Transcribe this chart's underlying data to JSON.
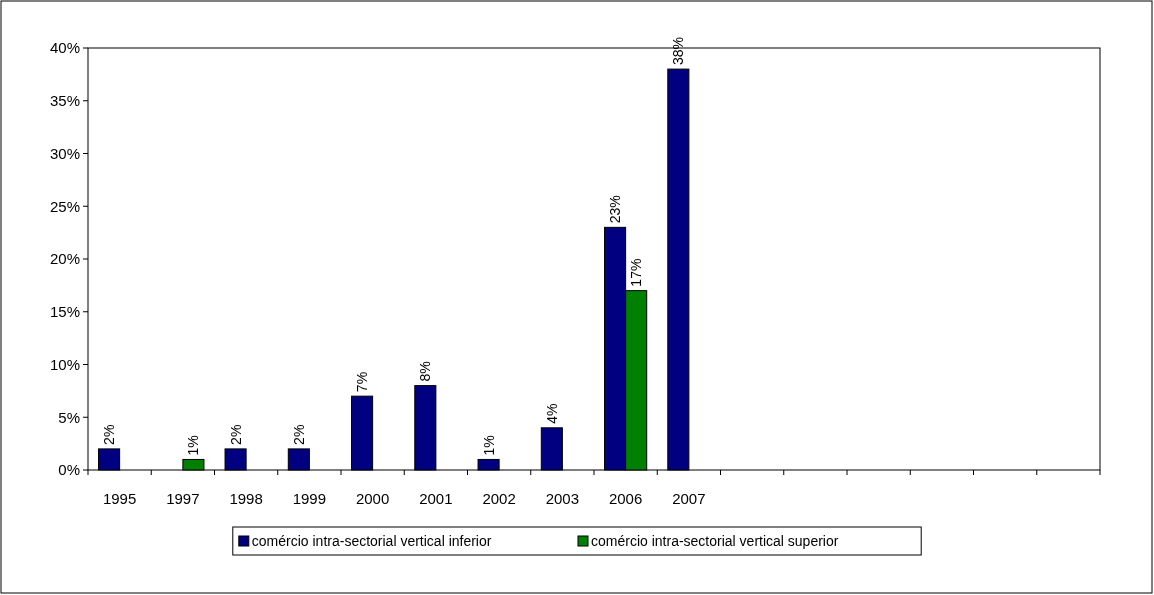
{
  "chart_data": {
    "type": "bar",
    "categories": [
      "1995",
      "1997",
      "1998",
      "1999",
      "2000",
      "2001",
      "2002",
      "2003",
      "2006",
      "2007",
      null,
      null,
      null,
      null,
      null,
      null
    ],
    "series": [
      {
        "name": "comércio intra-sectorial vertical inferior",
        "color": "#000080",
        "values": [
          2,
          null,
          2,
          2,
          7,
          8,
          1,
          4,
          23,
          38,
          null,
          null,
          null,
          null,
          null,
          null
        ],
        "value_labels": [
          "2%",
          null,
          "2%",
          "2%",
          "7%",
          "8%",
          "1%",
          "4%",
          "23%",
          "38%",
          null,
          null,
          null,
          null,
          null,
          null
        ]
      },
      {
        "name": "comércio intra-sectorial vertical superior",
        "color": "#008000",
        "values": [
          null,
          1,
          null,
          null,
          null,
          null,
          null,
          null,
          17,
          null,
          null,
          null,
          null,
          null,
          null,
          null
        ],
        "value_labels": [
          null,
          "1%",
          null,
          null,
          null,
          null,
          null,
          null,
          "17%",
          null,
          null,
          null,
          null,
          null,
          null,
          null
        ]
      }
    ],
    "ylim": [
      0,
      40
    ],
    "yticks": [
      {
        "value": 0,
        "label": "0%"
      },
      {
        "value": 5,
        "label": "5%"
      },
      {
        "value": 10,
        "label": "10%"
      },
      {
        "value": 15,
        "label": "15%"
      },
      {
        "value": 20,
        "label": "20%"
      },
      {
        "value": 25,
        "label": "25%"
      },
      {
        "value": 30,
        "label": "30%"
      },
      {
        "value": 35,
        "label": "35%"
      },
      {
        "value": 40,
        "label": "40%"
      }
    ],
    "grid": false,
    "legend": "bottom"
  }
}
